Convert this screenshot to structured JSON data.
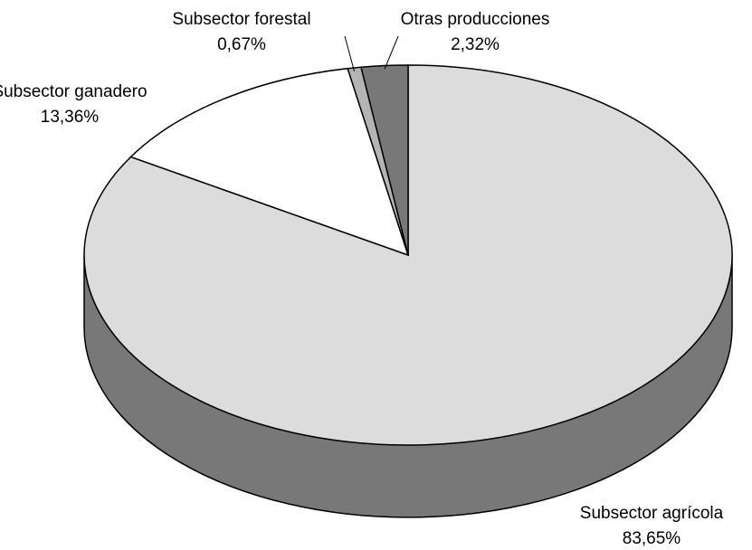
{
  "chart_data": {
    "type": "pie3d",
    "categories": [
      "Subsector agrícola",
      "Subsector ganadero",
      "Subsector forestal",
      "Otras producciones"
    ],
    "values": [
      83.65,
      13.36,
      0.67,
      2.32
    ],
    "value_labels": [
      "83,65%",
      "13,36%",
      "0,67%",
      "2,32%"
    ],
    "colors": [
      "#dcdcdc",
      "#ffffff",
      "#b4b4b4",
      "#787878"
    ],
    "side_color": "#787878"
  }
}
